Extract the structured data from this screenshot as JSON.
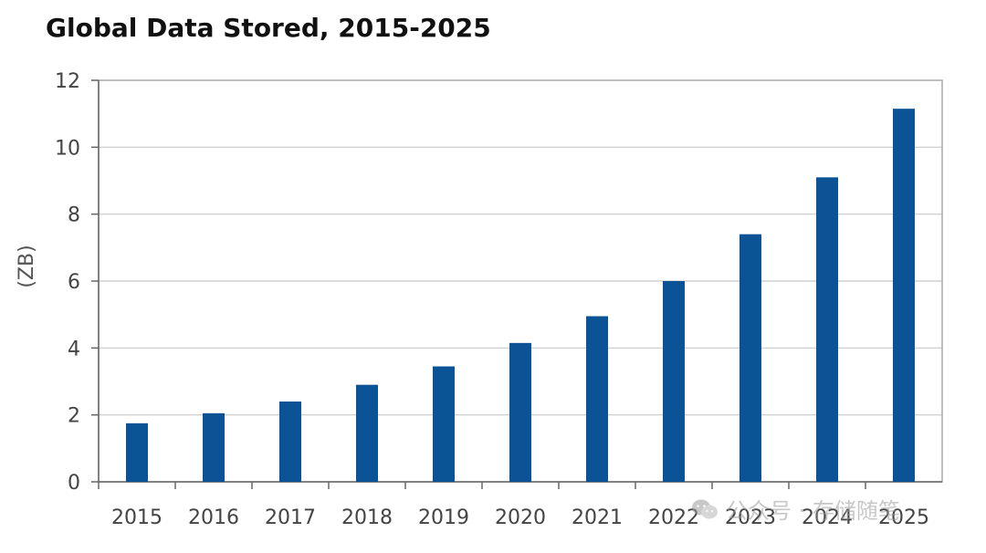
{
  "chart_data": {
    "type": "bar",
    "title": "Global Data Stored, 2015-2025",
    "ylabel": "(ZB)",
    "xlabel": "",
    "categories": [
      "2015",
      "2016",
      "2017",
      "2018",
      "2019",
      "2020",
      "2021",
      "2022",
      "2023",
      "2024",
      "2025"
    ],
    "values": [
      1.75,
      2.05,
      2.4,
      2.9,
      3.45,
      4.15,
      4.95,
      6.0,
      7.4,
      9.1,
      11.15
    ],
    "ylim": [
      0,
      12
    ],
    "yticks": [
      0,
      2,
      4,
      6,
      8,
      10,
      12
    ],
    "grid": true,
    "bar_color": "#0b5394"
  },
  "watermark": {
    "text": "公众号 · 存储随笔",
    "icon": "wechat-icon"
  }
}
